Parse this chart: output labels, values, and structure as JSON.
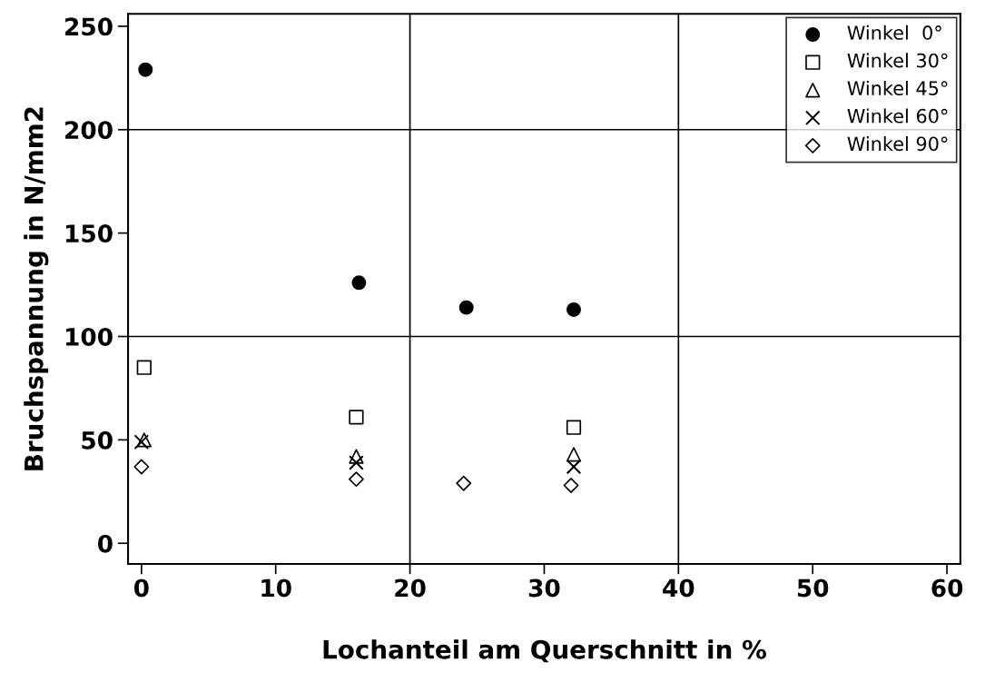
{
  "chart_data": {
    "type": "scatter",
    "xlabel": "Lochanteil am Querschnitt in %",
    "ylabel": "Bruchspannung in N/mm2",
    "xlim": [
      -1,
      61
    ],
    "xticks": [
      0,
      10,
      20,
      30,
      40,
      50,
      60
    ],
    "ylim": [
      -10,
      256
    ],
    "yticks": [
      0,
      50,
      100,
      150,
      200,
      250
    ],
    "grid": false,
    "legend": "top right",
    "ref_lines": [
      {
        "axis": "x",
        "value": 20,
        "color": "#000000"
      },
      {
        "axis": "x",
        "value": 40,
        "color": "#000000"
      },
      {
        "axis": "y",
        "value": 100,
        "color": "#000000"
      },
      {
        "axis": "y",
        "value": 200,
        "color": "#000000"
      }
    ],
    "series": [
      {
        "name": "Winkel  0°",
        "color": "#000000",
        "marker": "circle",
        "x": [
          0.3,
          16.2,
          24.2,
          32.2
        ],
        "values": [
          229,
          126,
          114,
          113
        ]
      },
      {
        "name": "Winkel 30°",
        "color": "#000000",
        "marker": "square",
        "x": [
          0.2,
          16,
          32.2
        ],
        "values": [
          85,
          61,
          56
        ]
      },
      {
        "name": "Winkel 45°",
        "color": "#000000",
        "marker": "triangle",
        "x": [
          0.2,
          16,
          32.2
        ],
        "values": [
          50,
          42,
          43
        ]
      },
      {
        "name": "Winkel 60°",
        "color": "#000000",
        "marker": "cross",
        "x": [
          0,
          16,
          32.2
        ],
        "values": [
          49,
          39,
          37
        ]
      },
      {
        "name": "Winkel 90°",
        "color": "#000000",
        "marker": "diamond",
        "x": [
          0,
          16,
          24,
          32
        ],
        "values": [
          37,
          31,
          29,
          28
        ]
      }
    ]
  }
}
